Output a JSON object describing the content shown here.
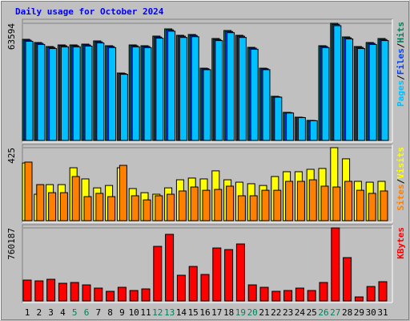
{
  "chart_data": [
    {
      "type": "bar",
      "title": "Daily usage for October 2024",
      "categories": [
        "1",
        "2",
        "3",
        "4",
        "5",
        "6",
        "7",
        "8",
        "9",
        "10",
        "11",
        "12",
        "13",
        "14",
        "15",
        "16",
        "17",
        "18",
        "19",
        "20",
        "21",
        "22",
        "23",
        "24",
        "25",
        "26",
        "27",
        "28",
        "29",
        "30",
        "31"
      ],
      "category_colors": [
        "#000000",
        "#000000",
        "#000000",
        "#000000",
        "#00805c",
        "#00805c",
        "#000000",
        "#000000",
        "#000000",
        "#000000",
        "#000000",
        "#00805c",
        "#00805c",
        "#000000",
        "#000000",
        "#000000",
        "#000000",
        "#000000",
        "#00805c",
        "#00805c",
        "#000000",
        "#000000",
        "#000000",
        "#000000",
        "#000000",
        "#00805c",
        "#00805c",
        "#000000",
        "#000000",
        "#000000",
        "#000000"
      ],
      "legend_separator": "/",
      "ylim": [
        0,
        63594
      ],
      "yticks": [
        63594
      ],
      "grid": true,
      "series": [
        {
          "name": "Pages",
          "color": "#00c0ff",
          "values": [
            53800,
            52100,
            49900,
            50800,
            50800,
            51200,
            52900,
            50400,
            35900,
            50800,
            50400,
            55500,
            59300,
            55900,
            56300,
            38400,
            54200,
            58500,
            55900,
            49500,
            38400,
            23500,
            14900,
            12400,
            10700,
            50400,
            62300,
            55100,
            49900,
            52100,
            54200
          ]
        },
        {
          "name": "Files",
          "color": "#0040ff",
          "values": [
            54400,
            52700,
            50500,
            51400,
            51400,
            51800,
            53500,
            51000,
            36300,
            51400,
            51000,
            56100,
            60000,
            56600,
            57000,
            38900,
            54800,
            59100,
            56600,
            50100,
            38900,
            23700,
            15100,
            12500,
            10800,
            51000,
            63000,
            55700,
            50500,
            52700,
            54800
          ]
        },
        {
          "name": "Hits",
          "color": "#00805c",
          "values": [
            54886,
            53143,
            50965,
            51836,
            51836,
            52272,
            54014,
            51400,
            36590,
            51836,
            51400,
            56628,
            60548,
            57064,
            57499,
            39204,
            55321,
            59677,
            57064,
            50530,
            39204,
            23958,
            15246,
            12632,
            10890,
            51400,
            63594,
            56192,
            50965,
            53143,
            55321
          ]
        }
      ]
    },
    {
      "type": "bar",
      "legend_separator": "/",
      "ylim": [
        0,
        425
      ],
      "yticks": [
        425
      ],
      "grid": true,
      "series": [
        {
          "name": "Sites",
          "color": "#ff8000",
          "values": [
            341,
            210,
            163,
            163,
            257,
            140,
            159,
            140,
            322,
            145,
            121,
            145,
            154,
            173,
            196,
            177,
            182,
            201,
            145,
            145,
            177,
            177,
            229,
            229,
            238,
            201,
            196,
            229,
            177,
            159,
            173
          ]
        },
        {
          "name": "Visits",
          "color": "#ffff00",
          "values": [
            336,
            154,
            210,
            210,
            308,
            243,
            191,
            205,
            308,
            187,
            163,
            154,
            191,
            238,
            248,
            243,
            290,
            238,
            224,
            215,
            205,
            257,
            285,
            285,
            299,
            304,
            425,
            360,
            229,
            224,
            229
          ]
        }
      ]
    },
    {
      "type": "bar",
      "ylim": [
        0,
        760187
      ],
      "yticks": [
        760187
      ],
      "grid": true,
      "series": [
        {
          "name": "KBytes",
          "color": "#ff0000",
          "values": [
            217204,
            208850,
            225558,
            183788,
            192142,
            167080,
            133664,
            100248,
            142018,
            108602,
            125310,
            568072,
            693382,
            267328,
            359222,
            275682,
            551364,
            534656,
            593134,
            167080,
            142018,
            100248,
            108602,
            133664,
            108602,
            192142,
            760187,
            451116,
            41770,
            150372,
            200496
          ]
        }
      ]
    }
  ]
}
